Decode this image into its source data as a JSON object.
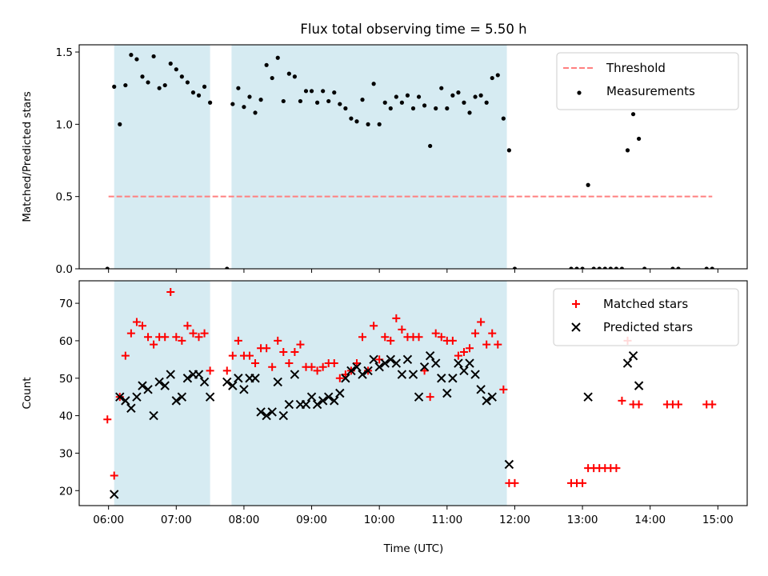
{
  "title": "Flux total observing time = 5.50 h",
  "xlabel": "Time (UTC)",
  "colors": {
    "shade": "#add8e6",
    "threshold": "#ff8080",
    "matched": "#ff0000",
    "predicted": "#000000",
    "measurement": "#000000"
  },
  "chart_data": [
    {
      "type": "scatter",
      "panel": "top",
      "ylabel": "Matched/Predicted stars",
      "xlim": [
        "05:34",
        "15:26"
      ],
      "ylim": [
        0,
        1.55
      ],
      "yticks": [
        0.0,
        0.5,
        1.0,
        1.5
      ],
      "ytick_labels": [
        "0.0",
        "0.5",
        "1.0",
        "1.5"
      ],
      "legend_position": "upper right",
      "shaded_intervals": [
        [
          "06:05",
          "07:30"
        ],
        [
          "07:49",
          "11:53"
        ]
      ],
      "threshold": {
        "name": "Threshold",
        "y": 0.5,
        "x_range": [
          "06:00",
          "14:55"
        ],
        "style": "dashed"
      },
      "series": [
        {
          "name": "Measurements",
          "marker": "dot",
          "points": [
            [
              "05:59",
              0.0
            ],
            [
              "06:05",
              1.26
            ],
            [
              "06:10",
              1.0
            ],
            [
              "06:15",
              1.27
            ],
            [
              "06:20",
              1.48
            ],
            [
              "06:25",
              1.45
            ],
            [
              "06:30",
              1.33
            ],
            [
              "06:35",
              1.29
            ],
            [
              "06:40",
              1.47
            ],
            [
              "06:45",
              1.25
            ],
            [
              "06:50",
              1.27
            ],
            [
              "06:55",
              1.42
            ],
            [
              "07:00",
              1.38
            ],
            [
              "07:05",
              1.33
            ],
            [
              "07:10",
              1.29
            ],
            [
              "07:15",
              1.22
            ],
            [
              "07:20",
              1.2
            ],
            [
              "07:25",
              1.26
            ],
            [
              "07:30",
              1.15
            ],
            [
              "07:45",
              0.0
            ],
            [
              "07:50",
              1.14
            ],
            [
              "07:55",
              1.25
            ],
            [
              "08:00",
              1.12
            ],
            [
              "08:05",
              1.19
            ],
            [
              "08:10",
              1.08
            ],
            [
              "08:15",
              1.17
            ],
            [
              "08:20",
              1.41
            ],
            [
              "08:25",
              1.32
            ],
            [
              "08:30",
              1.46
            ],
            [
              "08:35",
              1.16
            ],
            [
              "08:40",
              1.35
            ],
            [
              "08:45",
              1.33
            ],
            [
              "08:50",
              1.16
            ],
            [
              "08:55",
              1.23
            ],
            [
              "09:00",
              1.23
            ],
            [
              "09:05",
              1.15
            ],
            [
              "09:10",
              1.23
            ],
            [
              "09:15",
              1.16
            ],
            [
              "09:20",
              1.22
            ],
            [
              "09:25",
              1.14
            ],
            [
              "09:30",
              1.11
            ],
            [
              "09:35",
              1.04
            ],
            [
              "09:40",
              1.02
            ],
            [
              "09:45",
              1.17
            ],
            [
              "09:50",
              1.0
            ],
            [
              "09:55",
              1.28
            ],
            [
              "10:00",
              1.0
            ],
            [
              "10:05",
              1.15
            ],
            [
              "10:10",
              1.11
            ],
            [
              "10:15",
              1.19
            ],
            [
              "10:20",
              1.15
            ],
            [
              "10:25",
              1.2
            ],
            [
              "10:30",
              1.11
            ],
            [
              "10:35",
              1.19
            ],
            [
              "10:40",
              1.13
            ],
            [
              "10:45",
              0.85
            ],
            [
              "10:50",
              1.11
            ],
            [
              "10:55",
              1.25
            ],
            [
              "11:00",
              1.11
            ],
            [
              "11:05",
              1.2
            ],
            [
              "11:10",
              1.22
            ],
            [
              "11:15",
              1.15
            ],
            [
              "11:20",
              1.08
            ],
            [
              "11:25",
              1.19
            ],
            [
              "11:30",
              1.2
            ],
            [
              "11:35",
              1.15
            ],
            [
              "11:40",
              1.32
            ],
            [
              "11:45",
              1.34
            ],
            [
              "11:50",
              1.04
            ],
            [
              "11:55",
              0.82
            ],
            [
              "12:00",
              0.0
            ],
            [
              "12:50",
              0.0
            ],
            [
              "12:55",
              0.0
            ],
            [
              "13:00",
              0.0
            ],
            [
              "13:05",
              0.58
            ],
            [
              "13:10",
              0.0
            ],
            [
              "13:15",
              0.0
            ],
            [
              "13:20",
              0.0
            ],
            [
              "13:25",
              0.0
            ],
            [
              "13:30",
              0.0
            ],
            [
              "13:35",
              0.0
            ],
            [
              "13:40",
              0.82
            ],
            [
              "13:45",
              1.07
            ],
            [
              "13:50",
              0.9
            ],
            [
              "13:55",
              0.0
            ],
            [
              "14:20",
              0.0
            ],
            [
              "14:25",
              0.0
            ],
            [
              "14:50",
              0.0
            ],
            [
              "14:55",
              0.0
            ]
          ]
        }
      ]
    },
    {
      "type": "scatter",
      "panel": "bottom",
      "ylabel": "Count",
      "xlim": [
        "05:34",
        "15:26"
      ],
      "ylim": [
        16,
        76
      ],
      "yticks": [
        20,
        30,
        40,
        50,
        60,
        70
      ],
      "ytick_labels": [
        "20",
        "30",
        "40",
        "50",
        "60",
        "70"
      ],
      "xticks": [
        "06:00",
        "07:00",
        "08:00",
        "09:00",
        "10:00",
        "11:00",
        "12:00",
        "13:00",
        "14:00",
        "15:00"
      ],
      "legend_position": "upper right",
      "shaded_intervals": [
        [
          "06:05",
          "07:30"
        ],
        [
          "07:49",
          "11:53"
        ]
      ],
      "series": [
        {
          "name": "Matched stars",
          "marker": "plus",
          "points": [
            [
              "05:59",
              39
            ],
            [
              "06:05",
              24
            ],
            [
              "06:10",
              45
            ],
            [
              "06:15",
              56
            ],
            [
              "06:20",
              62
            ],
            [
              "06:25",
              65
            ],
            [
              "06:30",
              64
            ],
            [
              "06:35",
              61
            ],
            [
              "06:40",
              59
            ],
            [
              "06:45",
              61
            ],
            [
              "06:50",
              61
            ],
            [
              "06:55",
              73
            ],
            [
              "07:00",
              61
            ],
            [
              "07:05",
              60
            ],
            [
              "07:10",
              64
            ],
            [
              "07:15",
              62
            ],
            [
              "07:20",
              61
            ],
            [
              "07:25",
              62
            ],
            [
              "07:30",
              52
            ],
            [
              "07:45",
              52
            ],
            [
              "07:50",
              56
            ],
            [
              "07:55",
              60
            ],
            [
              "08:00",
              56
            ],
            [
              "08:05",
              56
            ],
            [
              "08:10",
              54
            ],
            [
              "08:15",
              58
            ],
            [
              "08:20",
              58
            ],
            [
              "08:25",
              53
            ],
            [
              "08:30",
              60
            ],
            [
              "08:35",
              57
            ],
            [
              "08:40",
              54
            ],
            [
              "08:45",
              57
            ],
            [
              "08:50",
              59
            ],
            [
              "08:55",
              53
            ],
            [
              "09:00",
              53
            ],
            [
              "09:05",
              52
            ],
            [
              "09:10",
              53
            ],
            [
              "09:15",
              54
            ],
            [
              "09:20",
              54
            ],
            [
              "09:25",
              50
            ],
            [
              "09:30",
              51
            ],
            [
              "09:35",
              52
            ],
            [
              "09:40",
              54
            ],
            [
              "09:45",
              61
            ],
            [
              "09:50",
              52
            ],
            [
              "09:55",
              64
            ],
            [
              "10:00",
              55
            ],
            [
              "10:05",
              61
            ],
            [
              "10:10",
              60
            ],
            [
              "10:15",
              66
            ],
            [
              "10:20",
              63
            ],
            [
              "10:25",
              61
            ],
            [
              "10:30",
              61
            ],
            [
              "10:35",
              61
            ],
            [
              "10:40",
              52
            ],
            [
              "10:45",
              45
            ],
            [
              "10:50",
              62
            ],
            [
              "10:55",
              61
            ],
            [
              "11:00",
              60
            ],
            [
              "11:05",
              60
            ],
            [
              "11:10",
              56
            ],
            [
              "11:15",
              57
            ],
            [
              "11:20",
              58
            ],
            [
              "11:25",
              62
            ],
            [
              "11:30",
              65
            ],
            [
              "11:35",
              59
            ],
            [
              "11:40",
              62
            ],
            [
              "11:45",
              59
            ],
            [
              "11:50",
              47
            ],
            [
              "11:55",
              22
            ],
            [
              "12:00",
              22
            ],
            [
              "12:50",
              22
            ],
            [
              "12:55",
              22
            ],
            [
              "13:00",
              22
            ],
            [
              "13:05",
              26
            ],
            [
              "13:10",
              26
            ],
            [
              "13:15",
              26
            ],
            [
              "13:20",
              26
            ],
            [
              "13:25",
              26
            ],
            [
              "13:30",
              26
            ],
            [
              "13:35",
              44
            ],
            [
              "13:40",
              60
            ],
            [
              "13:45",
              43
            ],
            [
              "13:50",
              43
            ],
            [
              "14:15",
              43
            ],
            [
              "14:20",
              43
            ],
            [
              "14:25",
              43
            ],
            [
              "14:50",
              43
            ],
            [
              "14:55",
              43
            ]
          ]
        },
        {
          "name": "Predicted stars",
          "marker": "x",
          "points": [
            [
              "06:05",
              19
            ],
            [
              "06:10",
              45
            ],
            [
              "06:15",
              44
            ],
            [
              "06:20",
              42
            ],
            [
              "06:25",
              45
            ],
            [
              "06:30",
              48
            ],
            [
              "06:35",
              47
            ],
            [
              "06:40",
              40
            ],
            [
              "06:45",
              49
            ],
            [
              "06:50",
              48
            ],
            [
              "06:55",
              51
            ],
            [
              "07:00",
              44
            ],
            [
              "07:05",
              45
            ],
            [
              "07:10",
              50
            ],
            [
              "07:15",
              51
            ],
            [
              "07:20",
              51
            ],
            [
              "07:25",
              49
            ],
            [
              "07:30",
              45
            ],
            [
              "07:45",
              49
            ],
            [
              "07:50",
              48
            ],
            [
              "07:55",
              50
            ],
            [
              "08:00",
              47
            ],
            [
              "08:05",
              50
            ],
            [
              "08:10",
              50
            ],
            [
              "08:15",
              41
            ],
            [
              "08:20",
              40
            ],
            [
              "08:25",
              41
            ],
            [
              "08:30",
              49
            ],
            [
              "08:35",
              40
            ],
            [
              "08:40",
              43
            ],
            [
              "08:45",
              51
            ],
            [
              "08:50",
              43
            ],
            [
              "08:55",
              43
            ],
            [
              "09:00",
              45
            ],
            [
              "09:05",
              43
            ],
            [
              "09:10",
              44
            ],
            [
              "09:15",
              45
            ],
            [
              "09:20",
              44
            ],
            [
              "09:25",
              46
            ],
            [
              "09:30",
              50
            ],
            [
              "09:35",
              52
            ],
            [
              "09:40",
              53
            ],
            [
              "09:45",
              51
            ],
            [
              "09:50",
              52
            ],
            [
              "09:55",
              55
            ],
            [
              "10:00",
              53
            ],
            [
              "10:05",
              54
            ],
            [
              "10:10",
              55
            ],
            [
              "10:15",
              54
            ],
            [
              "10:20",
              51
            ],
            [
              "10:25",
              55
            ],
            [
              "10:30",
              51
            ],
            [
              "10:35",
              45
            ],
            [
              "10:40",
              53
            ],
            [
              "10:45",
              56
            ],
            [
              "10:50",
              54
            ],
            [
              "10:55",
              50
            ],
            [
              "11:00",
              46
            ],
            [
              "11:05",
              50
            ],
            [
              "11:10",
              54
            ],
            [
              "11:15",
              52
            ],
            [
              "11:20",
              54
            ],
            [
              "11:25",
              51
            ],
            [
              "11:30",
              47
            ],
            [
              "11:35",
              44
            ],
            [
              "11:40",
              45
            ],
            [
              "11:55",
              27
            ],
            [
              "13:05",
              45
            ],
            [
              "13:40",
              54
            ],
            [
              "13:45",
              56
            ],
            [
              "13:50",
              48
            ]
          ]
        }
      ]
    }
  ]
}
